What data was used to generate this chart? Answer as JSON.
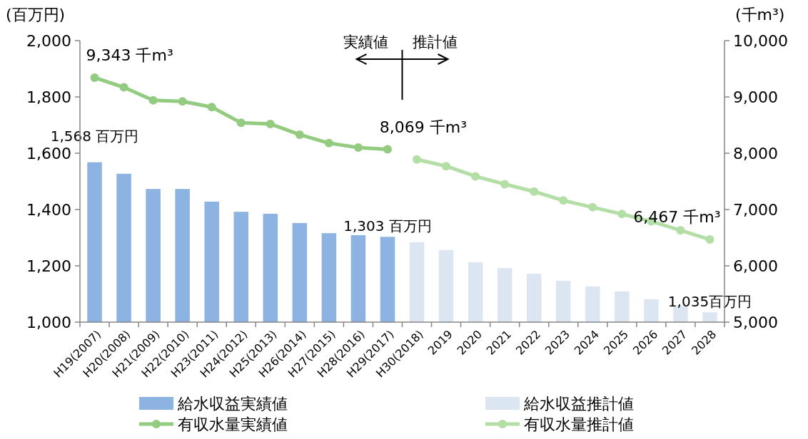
{
  "chart_data": {
    "type": "bar",
    "categories": [
      "H19(2007)",
      "H20(2008)",
      "H21(2009)",
      "H22(2010)",
      "H23(2011)",
      "H24(2012)",
      "H25(2013)",
      "H26(2014)",
      "H27(2015)",
      "H28(2016)",
      "H29(2017)",
      "H30(2018)",
      "2019",
      "2020",
      "2021",
      "2022",
      "2023",
      "2024",
      "2025",
      "2026",
      "2027",
      "2028"
    ],
    "ylabel": "(百万円)",
    "y2label": "(千m³)",
    "ylim": [
      1000,
      2000
    ],
    "yticks": [
      {
        "value": 1000,
        "label": "1,000"
      },
      {
        "value": 1200,
        "label": "1,200"
      },
      {
        "value": 1400,
        "label": "1,400"
      },
      {
        "value": 1600,
        "label": "1,600"
      },
      {
        "value": 1800,
        "label": "1,800"
      },
      {
        "value": 2000,
        "label": "2,000"
      }
    ],
    "y2lim": [
      5000,
      10000
    ],
    "y2ticks": [
      {
        "value": 5000,
        "label": "5,000"
      },
      {
        "value": 6000,
        "label": "6,000"
      },
      {
        "value": 7000,
        "label": "7,000"
      },
      {
        "value": 8000,
        "label": "8,000"
      },
      {
        "value": 9000,
        "label": "9,000"
      },
      {
        "value": 10000,
        "label": "10,000"
      }
    ],
    "series": [
      {
        "name": "給水収益実績値",
        "color": "#8db3e2",
        "values": [
          1568,
          1527,
          1473,
          1473,
          1428,
          1392,
          1385,
          1352,
          1316,
          1309,
          1303,
          null,
          null,
          null,
          null,
          null,
          null,
          null,
          null,
          null,
          null,
          null
        ],
        "value_labels": [
          "1,568 百万円",
          null,
          null,
          null,
          null,
          null,
          null,
          null,
          null,
          null,
          "1,303 百万円",
          null,
          null,
          null,
          null,
          null,
          null,
          null,
          null,
          null,
          null,
          null
        ]
      },
      {
        "name": "給水収益推計値",
        "color": "#dce6f2",
        "values": [
          null,
          null,
          null,
          null,
          null,
          null,
          null,
          null,
          null,
          null,
          null,
          1284,
          1256,
          1213,
          1192,
          1172,
          1147,
          1127,
          1109,
          1081,
          1058,
          1035
        ],
        "value_labels": [
          null,
          null,
          null,
          null,
          null,
          null,
          null,
          null,
          null,
          null,
          null,
          null,
          null,
          null,
          null,
          null,
          null,
          null,
          null,
          null,
          null,
          "1,035百万円"
        ]
      },
      {
        "name": "有収水量実績値",
        "type": "line",
        "axis": "y2",
        "color": "#93cc80",
        "marker": "circle",
        "values": [
          9343,
          9170,
          8940,
          8920,
          8820,
          8540,
          8520,
          8330,
          8180,
          8100,
          8069,
          null,
          null,
          null,
          null,
          null,
          null,
          null,
          null,
          null,
          null,
          null
        ],
        "value_labels": [
          "9,343 千m³",
          null,
          null,
          null,
          null,
          null,
          null,
          null,
          null,
          null,
          "8,069 千m³",
          null,
          null,
          null,
          null,
          null,
          null,
          null,
          null,
          null,
          null,
          null
        ]
      },
      {
        "name": "有収水量推計値",
        "type": "line",
        "axis": "y2",
        "color": "#b3dea5",
        "marker": "circle",
        "values": [
          null,
          null,
          null,
          null,
          null,
          null,
          null,
          null,
          null,
          null,
          null,
          7890,
          7770,
          7590,
          7450,
          7320,
          7160,
          7040,
          6920,
          6790,
          6630,
          6467
        ],
        "value_labels": [
          null,
          null,
          null,
          null,
          null,
          null,
          null,
          null,
          null,
          null,
          null,
          null,
          null,
          null,
          null,
          null,
          null,
          null,
          null,
          null,
          null,
          "6,467 千m³"
        ]
      }
    ],
    "annotations": [
      "実績値",
      "推計値"
    ],
    "legend": "bottom",
    "grid": false
  }
}
